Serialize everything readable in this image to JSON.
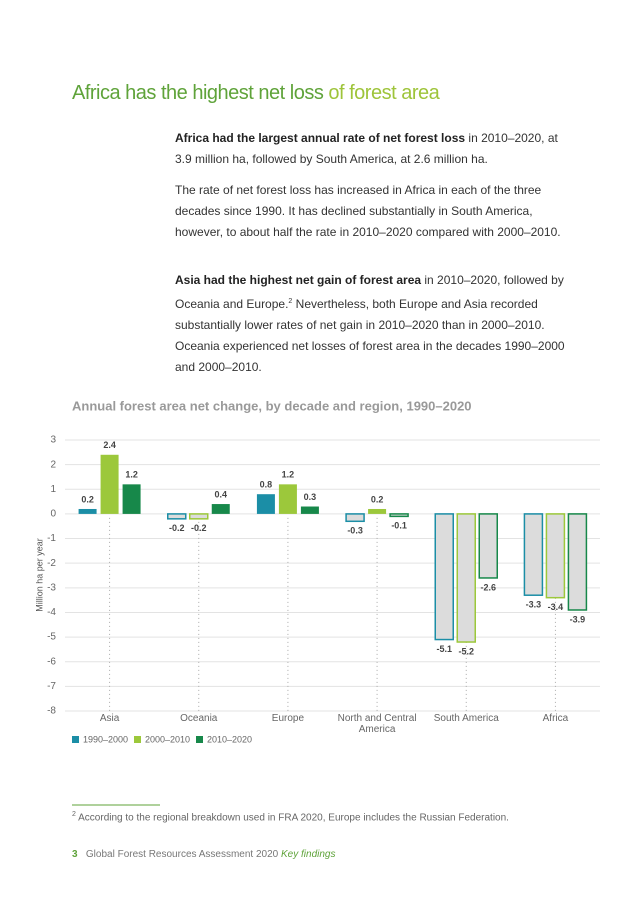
{
  "heading": {
    "main": "Africa has the highest net loss",
    "tail": "of forest area"
  },
  "paragraphs": [
    {
      "bold": "Africa had the largest annual rate of net forest loss",
      "text": " in 2010–2020, at 3.9 million ha, followed by South America, at 2.6 million ha."
    },
    {
      "text": "The rate of net forest loss has increased in Africa in each of the three decades since 1990. It has declined substantially in South America, however, to about half the rate in  2010–2020 compared with 2000–2010."
    },
    {
      "bold": "Asia had the highest net gain of forest area",
      "text": " in 2010–2020, followed by Oceania and Europe.",
      "sup": "2",
      "after": " Nevertheless, both Europe and Asia recorded substantially lower rates of net gain in 2010–2020 than in 2000–2010. Oceania experienced net losses of forest area in the decades 1990–2000 and 2000–2010."
    }
  ],
  "chart_data": {
    "type": "bar",
    "title": "Annual forest area net change, by decade and region, 1990–2020",
    "y_label": "Million ha per year",
    "categories": [
      "Asia",
      "Oceania",
      "Europe",
      "North and Central America",
      "South America",
      "Africa"
    ],
    "series": [
      {
        "name": "1990–2000",
        "color": "#1b8ea6",
        "values": [
          0.2,
          -0.2,
          0.8,
          -0.3,
          -5.1,
          -3.3
        ]
      },
      {
        "name": "2000–2010",
        "color": "#9cc83b",
        "values": [
          2.4,
          -0.2,
          1.2,
          0.2,
          -5.2,
          -3.4
        ]
      },
      {
        "name": "2010–2020",
        "color": "#17884a",
        "values": [
          1.2,
          0.4,
          0.3,
          -0.1,
          -2.6,
          -3.9
        ]
      }
    ],
    "ylim": [
      -8,
      3
    ],
    "yticks": [
      3,
      2,
      1,
      0,
      -1,
      -2,
      -3,
      -4,
      -5,
      -6,
      -7,
      -8
    ],
    "grid": true,
    "negative_fill": "#dcdcdc"
  },
  "footnote": {
    "sup": "2",
    "text": " According to the regional breakdown used in FRA 2020, Europe includes the Russian Federation."
  },
  "footer": {
    "page": "3",
    "title": "Global Forest Resources Assessment 2020",
    "subtitle": "Key findings"
  }
}
